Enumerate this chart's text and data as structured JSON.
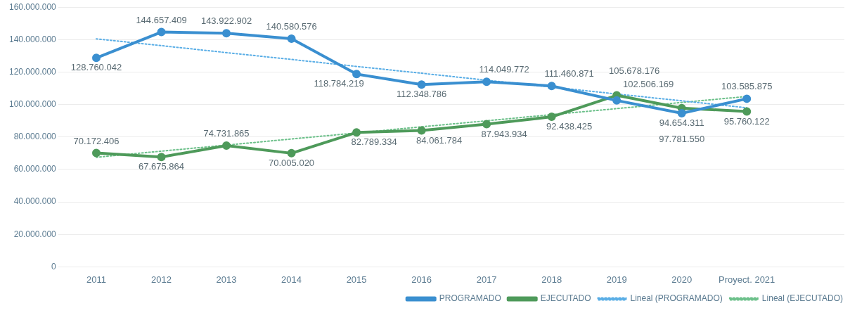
{
  "chart_data": {
    "type": "line",
    "categories": [
      "2011",
      "2012",
      "2013",
      "2014",
      "2015",
      "2016",
      "2017",
      "2018",
      "2019",
      "2020",
      "Proyect. 2021"
    ],
    "ylim": [
      0,
      160000000
    ],
    "yticks": [
      {
        "value": 0,
        "label": "0"
      },
      {
        "value": 20000000,
        "label": "20.000.000"
      },
      {
        "value": 40000000,
        "label": "40.000.000"
      },
      {
        "value": 60000000,
        "label": "60.000.000"
      },
      {
        "value": 80000000,
        "label": "80.000.000"
      },
      {
        "value": 100000000,
        "label": "100.000.000"
      },
      {
        "value": 120000000,
        "label": "120.000.000"
      },
      {
        "value": 140000000,
        "label": "140.000.000"
      },
      {
        "value": 160000000,
        "label": "160.000.000"
      }
    ],
    "grid": "y",
    "legend": "bottom right",
    "marker": "circle",
    "line_style": "solid",
    "series": [
      {
        "name": "PROGRAMADO",
        "color": "#3a8fd0",
        "values": [
          128760042,
          144657409,
          143922902,
          140580576,
          118784219,
          112348786,
          114049772,
          111460871,
          102506169,
          94654311,
          103585875
        ],
        "value_labels": [
          "128.760.042",
          "144.657.409",
          "143.922.902",
          "140.580.576",
          "118.784.219",
          "112.348.786",
          "114.049.772",
          "111.460.871",
          "102.506.169",
          "94.654.311",
          "103.585.875"
        ]
      },
      {
        "name": "EJECUTADO",
        "color": "#4e9a5a",
        "values": [
          70172406,
          67675864,
          74731865,
          70005020,
          82789334,
          84061784,
          87943934,
          92438425,
          105678176,
          97781550,
          95760122
        ],
        "value_labels": [
          "70.172.406",
          "67.675.864",
          "74.731.865",
          "70.005.020",
          "82.789.334",
          "84.061.784",
          "87.943.934",
          "92.438.425",
          "105.678.176",
          "97.781.550",
          "95.760.122"
        ]
      },
      {
        "name": "Lineal (PROGRAMADO)",
        "type": "line",
        "color": "#5aaee6",
        "line_style": "dotted",
        "marker": "none",
        "values": [
          140500000,
          136300000,
          132000000,
          127800000,
          123500000,
          119300000,
          115000000,
          110800000,
          106500000,
          102300000,
          98000000
        ]
      },
      {
        "name": "Lineal (EJECUTADO)",
        "type": "line",
        "color": "#6cc08a",
        "line_style": "dotted",
        "marker": "none",
        "values": [
          67500000,
          71300000,
          75000000,
          78800000,
          82500000,
          86300000,
          90000000,
          93800000,
          97500000,
          101300000,
          105000000
        ]
      }
    ]
  }
}
